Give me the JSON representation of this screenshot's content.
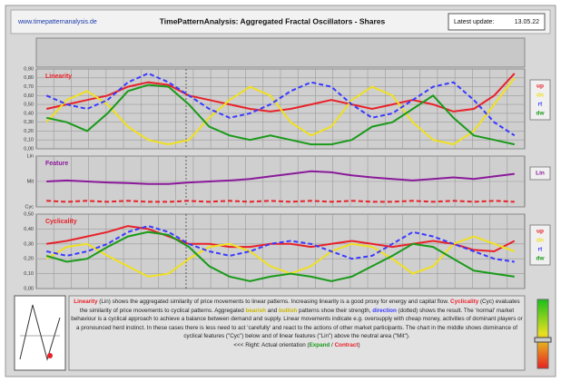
{
  "header": {
    "site": "www.timepatternanalysis.de",
    "title": "TimePatternAnalysis: Aggregated Fractal Oscillators - Shares",
    "update_label": "Latest update:",
    "update_value": "13.05.22"
  },
  "chart_data": [
    {
      "type": "line",
      "title": "Linearity",
      "grid": true,
      "categories": [
        null,
        null,
        null,
        null,
        null,
        null,
        null,
        null,
        null,
        null,
        null,
        null,
        null,
        null,
        null,
        null,
        null,
        null,
        null,
        null,
        null,
        null,
        null,
        null
      ],
      "ylim": [
        0,
        0.9
      ],
      "yticks": [
        {
          "value": 0,
          "label": "0,00"
        },
        {
          "value": 0.1,
          "label": "0,10"
        },
        {
          "value": 0.2,
          "label": "0,20"
        },
        {
          "value": 0.3,
          "label": "0,30"
        },
        {
          "value": 0.4,
          "label": "0,40"
        },
        {
          "value": 0.5,
          "label": "0,50"
        },
        {
          "value": 0.6,
          "label": "0,60"
        },
        {
          "value": 0.7,
          "label": "0,70"
        },
        {
          "value": 0.8,
          "label": "0,80"
        },
        {
          "value": 0.9,
          "label": "0,90"
        }
      ],
      "series": [
        {
          "name": "up",
          "color": "#e8222a",
          "values": [
            0.45,
            0.5,
            0.55,
            0.6,
            0.7,
            0.75,
            0.72,
            0.6,
            0.55,
            0.5,
            0.45,
            0.42,
            0.45,
            0.5,
            0.55,
            0.5,
            0.45,
            0.5,
            0.55,
            0.5,
            0.42,
            0.45,
            0.6,
            0.85
          ]
        },
        {
          "name": "dn",
          "color": "#f0e020",
          "values": [
            0.3,
            0.55,
            0.65,
            0.5,
            0.25,
            0.1,
            0.05,
            0.1,
            0.35,
            0.55,
            0.7,
            0.6,
            0.3,
            0.15,
            0.25,
            0.55,
            0.7,
            0.6,
            0.3,
            0.1,
            0.05,
            0.2,
            0.5,
            0.8
          ]
        },
        {
          "name": "rt",
          "color": "#3a3aff",
          "dashed": true,
          "values": [
            0.6,
            0.5,
            0.45,
            0.55,
            0.75,
            0.85,
            0.75,
            0.6,
            0.45,
            0.35,
            0.4,
            0.5,
            0.65,
            0.75,
            0.7,
            0.5,
            0.35,
            0.4,
            0.55,
            0.7,
            0.75,
            0.55,
            0.3,
            0.15
          ]
        },
        {
          "name": "dw",
          "color": "#1a9a1a",
          "values": [
            0.35,
            0.3,
            0.2,
            0.4,
            0.65,
            0.72,
            0.7,
            0.5,
            0.25,
            0.15,
            0.1,
            0.15,
            0.1,
            0.05,
            0.05,
            0.1,
            0.25,
            0.3,
            0.45,
            0.6,
            0.35,
            0.15,
            0.1,
            0.05
          ]
        }
      ]
    },
    {
      "type": "line",
      "title": "Feature",
      "grid": true,
      "categories": [
        null,
        null,
        null,
        null,
        null,
        null,
        null,
        null,
        null,
        null,
        null,
        null,
        null,
        null,
        null,
        null,
        null,
        null,
        null,
        null,
        null,
        null,
        null,
        null
      ],
      "ylim": [
        0,
        1
      ],
      "yticks": [
        {
          "value": 0,
          "label": "Cyc"
        },
        {
          "value": 0.5,
          "label": "Mit"
        },
        {
          "value": 1,
          "label": "Lin"
        }
      ],
      "series": [
        {
          "name": "Lin",
          "color": "#8a1a9a",
          "values": [
            0.5,
            0.52,
            0.5,
            0.48,
            0.47,
            0.45,
            0.45,
            0.48,
            0.5,
            0.52,
            0.55,
            0.6,
            0.65,
            0.7,
            0.68,
            0.62,
            0.58,
            0.55,
            0.52,
            0.55,
            0.58,
            0.55,
            0.6,
            0.65
          ]
        },
        {
          "color": "#e8222a",
          "dashed": true,
          "values": [
            0.12,
            0.1,
            0.12,
            0.1,
            0.12,
            0.1,
            0.1,
            0.12,
            0.1,
            0.12,
            0.1,
            0.12,
            0.1,
            0.12,
            0.1,
            0.12,
            0.1,
            0.1,
            0.12,
            0.1,
            0.12,
            0.1,
            0.12,
            0.1
          ]
        }
      ]
    },
    {
      "type": "line",
      "title": "Cyclicality",
      "grid": true,
      "categories": [
        null,
        null,
        null,
        null,
        null,
        null,
        null,
        null,
        null,
        null,
        null,
        null,
        null,
        null,
        null,
        null,
        null,
        null,
        null,
        null,
        null,
        null,
        null,
        null
      ],
      "ylim": [
        0,
        0.5
      ],
      "yticks": [
        {
          "value": 0,
          "label": "0,00"
        },
        {
          "value": 0.1,
          "label": "0,10"
        },
        {
          "value": 0.2,
          "label": "0,20"
        },
        {
          "value": 0.3,
          "label": "0,30"
        },
        {
          "value": 0.4,
          "label": "0,40"
        },
        {
          "value": 0.5,
          "label": "0,50"
        }
      ],
      "series": [
        {
          "name": "up",
          "color": "#e8222a",
          "values": [
            0.3,
            0.32,
            0.35,
            0.38,
            0.42,
            0.4,
            0.35,
            0.3,
            0.3,
            0.28,
            0.28,
            0.3,
            0.3,
            0.28,
            0.3,
            0.32,
            0.3,
            0.28,
            0.3,
            0.32,
            0.3,
            0.26,
            0.25,
            0.32
          ]
        },
        {
          "name": "dn",
          "color": "#f0e020",
          "values": [
            0.2,
            0.28,
            0.3,
            0.22,
            0.15,
            0.08,
            0.1,
            0.2,
            0.28,
            0.3,
            0.25,
            0.15,
            0.1,
            0.15,
            0.25,
            0.3,
            0.28,
            0.2,
            0.1,
            0.15,
            0.3,
            0.35,
            0.3,
            0.25
          ]
        },
        {
          "name": "rt",
          "color": "#3a3aff",
          "dashed": true,
          "values": [
            0.25,
            0.22,
            0.25,
            0.3,
            0.38,
            0.42,
            0.38,
            0.3,
            0.25,
            0.22,
            0.25,
            0.3,
            0.32,
            0.3,
            0.25,
            0.2,
            0.22,
            0.3,
            0.38,
            0.35,
            0.3,
            0.25,
            0.2,
            0.18
          ]
        },
        {
          "name": "dw",
          "color": "#1a9a1a",
          "values": [
            0.22,
            0.18,
            0.2,
            0.28,
            0.35,
            0.38,
            0.36,
            0.28,
            0.15,
            0.08,
            0.05,
            0.08,
            0.1,
            0.08,
            0.05,
            0.08,
            0.15,
            0.22,
            0.3,
            0.28,
            0.2,
            0.12,
            0.1,
            0.08
          ]
        }
      ]
    }
  ],
  "description": [
    {
      "text": "Linearity",
      "color": "#e8222a"
    },
    {
      "text": " (Lin) shows the aggregated similarity of price movements to linear patterns. Increasing linearity is a good proxy for energy and capital flow. ",
      "color": "#222222"
    },
    {
      "text": "Cyclicality",
      "color": "#e8222a"
    },
    {
      "text": " (Cyc) evaluates the similarity of price movements to cyclical patterns. Aggregated ",
      "color": "#222222"
    },
    {
      "text": "bearish",
      "color": "#c8b400"
    },
    {
      "text": " and ",
      "color": "#222222"
    },
    {
      "text": "bullish",
      "color": "#c8b400"
    },
    {
      "text": " patterns show their strength, ",
      "color": "#222222"
    },
    {
      "text": "direction",
      "color": "#3a3aff"
    },
    {
      "text": " (dotted) shows the result. The 'normal' market behaviour is a cyclical approach to achieve a balance between demand and supply. Linear movements indicate e.g. oversupply with cheap money, activities of dominant players or a pronounced herd instinct. In these cases there is less need to act 'carefully' and react to the actions of other market participants. The chart in the middle shows dominance of cyclical features (\"Cyc\") below and of linear features (\"Lin\") above the neutral area (\"Mit\").",
      "color": "#222222"
    }
  ],
  "orientation": [
    {
      "text": "<<< Right: Actual orientation (",
      "color": "#222222"
    },
    {
      "text": "Expand",
      "color": "#1a9a1a"
    },
    {
      "text": " / ",
      "color": "#222222"
    },
    {
      "text": "Contract",
      "color": "#e8222a"
    },
    {
      "text": ")",
      "color": "#222222"
    }
  ]
}
